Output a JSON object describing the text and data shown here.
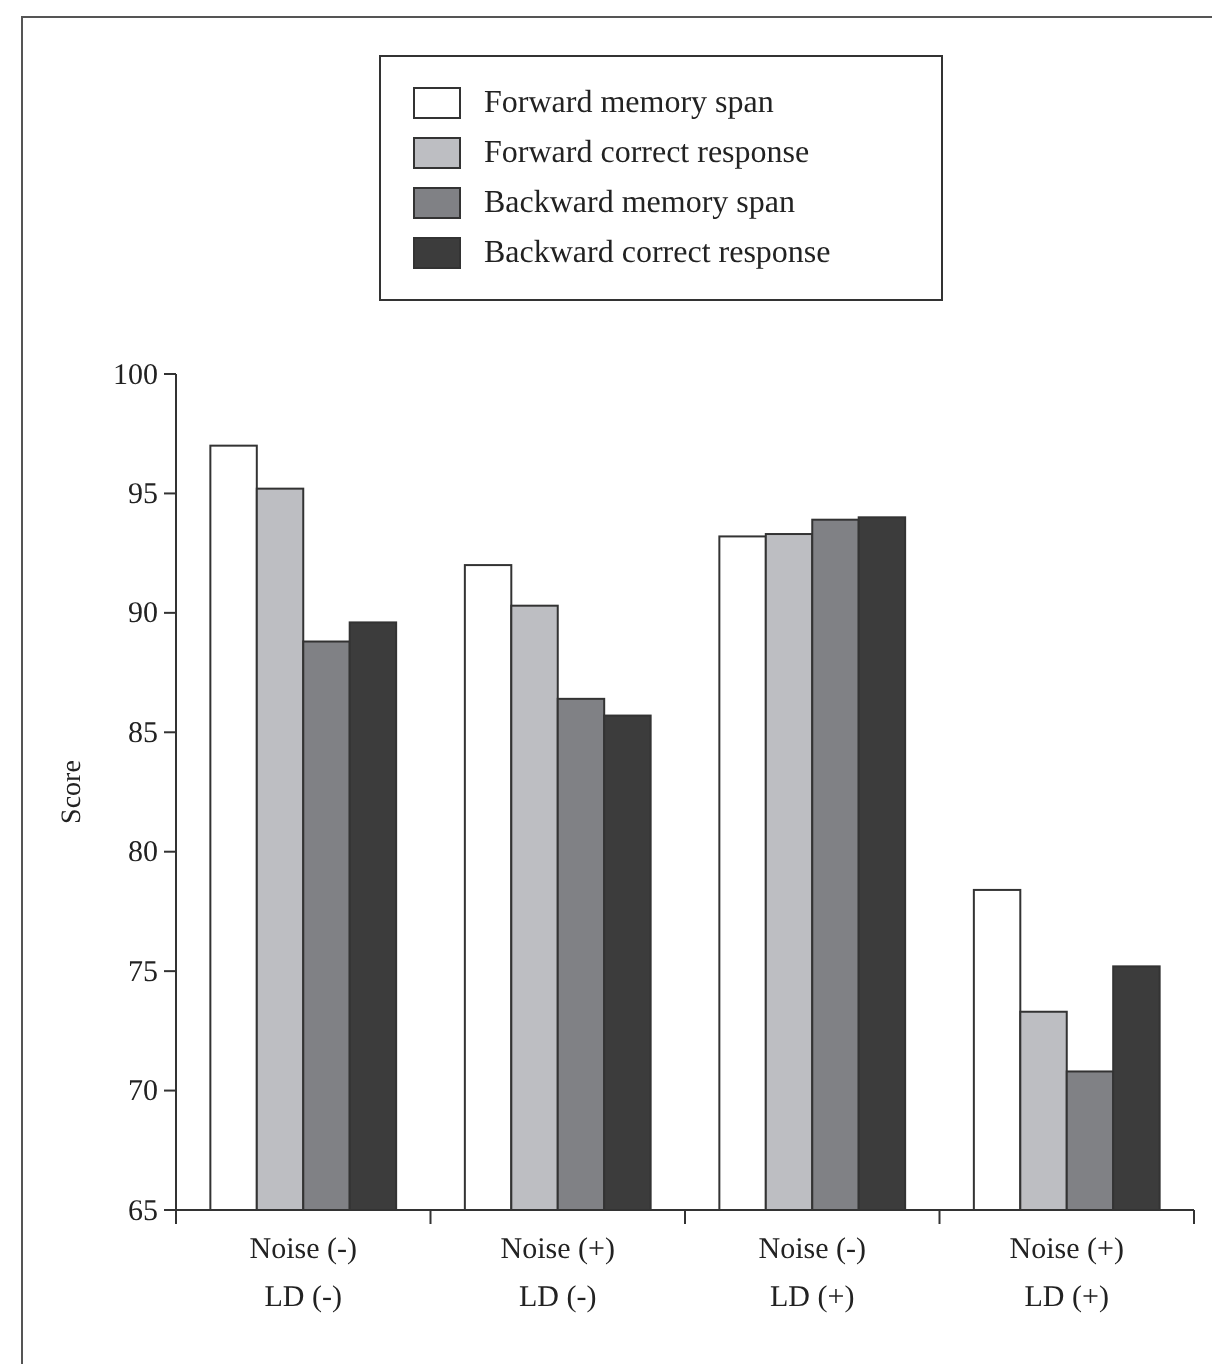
{
  "chart_data": {
    "type": "bar",
    "ylabel": "Score",
    "categories": [
      "Noise (-)\nLD (-)",
      "Noise (+)\nLD (-)",
      "Noise (-)\nLD (+)",
      "Noise (+)\nLD (+)"
    ],
    "series": [
      {
        "name": "Forward memory span",
        "color": "#ffffff",
        "values": [
          97.0,
          92.0,
          93.2,
          78.4
        ]
      },
      {
        "name": "Forward correct response",
        "color": "#bdbec2",
        "values": [
          95.2,
          90.3,
          93.3,
          73.3
        ]
      },
      {
        "name": "Backward memory span",
        "color": "#808185",
        "values": [
          88.8,
          86.4,
          93.9,
          70.8
        ]
      },
      {
        "name": "Backward correct response",
        "color": "#3c3c3c",
        "values": [
          89.6,
          85.7,
          94.0,
          75.2
        ]
      }
    ],
    "ylim": [
      65,
      100
    ],
    "yticks": [
      65,
      70,
      75,
      80,
      85,
      90,
      95,
      100
    ],
    "grid": false,
    "legend": "top"
  }
}
